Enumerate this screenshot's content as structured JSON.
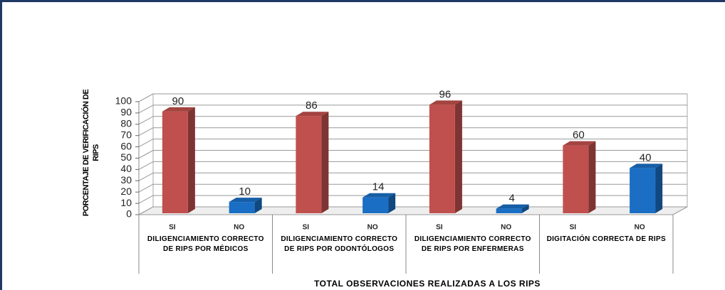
{
  "chart_data": {
    "type": "bar3d",
    "ylabel": "PORCENTAJE DE VERIFICACIÓN DE RIPS",
    "xlabel": "TOTAL OBSERVACIONES REALIZADAS A LOS RIPS",
    "groups": [
      {
        "label": "DILIGENCIAMIENTO CORRECTO DE RIPS POR MÉDICOS",
        "categories": [
          "SI",
          "NO"
        ],
        "values": [
          90,
          10
        ]
      },
      {
        "label": "DILIGENCIAMIENTO CORRECTO DE RIPS POR ODONTÓLOGOS",
        "categories": [
          "SI",
          "NO"
        ],
        "values": [
          86,
          14
        ]
      },
      {
        "label": "DILIGENCIAMIENTO CORRECTO DE RIPS POR ENFERMERAS",
        "categories": [
          "SI",
          "NO"
        ],
        "values": [
          96,
          4
        ]
      },
      {
        "label": "DIGITACIÓN CORRECTA DE RIPS",
        "categories": [
          "SI",
          "NO"
        ],
        "values": [
          60,
          40
        ]
      }
    ],
    "colors": [
      "#c0504d",
      "#1a6fc4"
    ],
    "ylim": [
      0,
      100
    ],
    "yticks": [
      0,
      10,
      20,
      30,
      40,
      50,
      60,
      70,
      80,
      90,
      100
    ],
    "grid": true
  }
}
